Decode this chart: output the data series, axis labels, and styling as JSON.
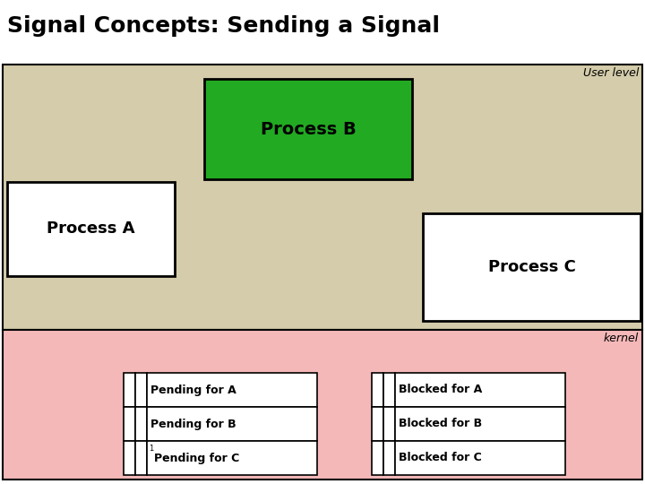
{
  "title": "Signal Concepts: Sending a Signal",
  "title_fontsize": 18,
  "title_fontweight": "bold",
  "bg_color": "#ffffff",
  "user_level_bg": "#d4ccaa",
  "kernel_bg": "#f4b8b8",
  "process_b_color": "#22aa22",
  "process_a_color": "#ffffff",
  "process_c_color": "#ffffff",
  "user_level_label": "User level",
  "kernel_label": "kernel",
  "process_b_label": "Process B",
  "process_a_label": "Process A",
  "process_c_label": "Process C",
  "pending_rows": [
    "Pending for A",
    "Pending for B",
    "1Pending for C"
  ],
  "blocked_rows": [
    "Blocked for A",
    "Blocked for B",
    "Blocked for C"
  ],
  "table_fontsize": 9
}
